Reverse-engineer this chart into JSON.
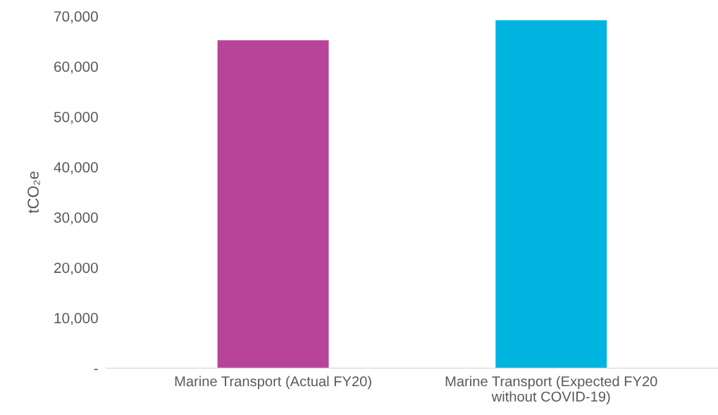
{
  "chart_data": {
    "type": "bar",
    "ylabel": "tCO₂e",
    "categories": [
      "Marine Transport (Actual FY20)",
      "Marine Transport (Expected FY20\nwithout COVID-19)"
    ],
    "values": [
      65200,
      69200
    ],
    "colors": [
      "#b8449a",
      "#00b4e0"
    ],
    "ylim": [
      0,
      70000
    ],
    "yticks": [
      {
        "value": 0,
        "label": "-"
      },
      {
        "value": 10000,
        "label": "10,000"
      },
      {
        "value": 20000,
        "label": "20,000"
      },
      {
        "value": 30000,
        "label": "30,000"
      },
      {
        "value": 40000,
        "label": "40,000"
      },
      {
        "value": 50000,
        "label": "50,000"
      },
      {
        "value": 60000,
        "label": "60,000"
      },
      {
        "value": 70000,
        "label": "70,000"
      }
    ],
    "grid": false,
    "legend": false
  }
}
